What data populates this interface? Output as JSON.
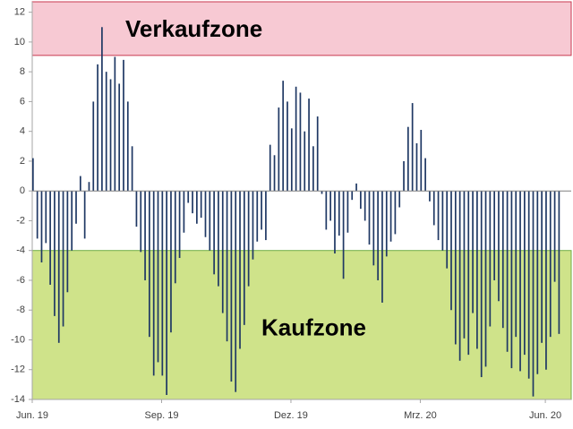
{
  "chart_data": {
    "type": "bar",
    "color": "#1f3864",
    "ylim": [
      -14,
      12.7
    ],
    "yticks": [
      -14,
      -12,
      -10,
      -8,
      -6,
      -4,
      -2,
      0,
      2,
      4,
      6,
      8,
      10,
      12
    ],
    "zones": [
      {
        "label": "Verkaufzone",
        "from": 9.1,
        "to": 12.7,
        "color": "#f7c9d3",
        "border": "#c8394f"
      },
      {
        "label": "Kaufzone",
        "from": -14,
        "to": -4,
        "color": "#cfe38a",
        "border": "#70ad47"
      }
    ],
    "categories": [
      "Jun. 19",
      null,
      null,
      null,
      null,
      null,
      null,
      null,
      null,
      null,
      null,
      null,
      null,
      null,
      null,
      null,
      null,
      null,
      null,
      null,
      null,
      null,
      null,
      null,
      null,
      null,
      null,
      null,
      null,
      null,
      "Sep. 19",
      null,
      null,
      null,
      null,
      null,
      null,
      null,
      null,
      null,
      null,
      null,
      null,
      null,
      null,
      null,
      null,
      null,
      null,
      null,
      null,
      null,
      null,
      null,
      null,
      null,
      null,
      null,
      null,
      null,
      "Dez. 19",
      null,
      null,
      null,
      null,
      null,
      null,
      null,
      null,
      null,
      null,
      null,
      null,
      null,
      null,
      null,
      null,
      null,
      null,
      null,
      null,
      null,
      null,
      null,
      null,
      null,
      null,
      null,
      null,
      null,
      "Mrz. 20",
      null,
      null,
      null,
      null,
      null,
      null,
      null,
      null,
      null,
      null,
      null,
      null,
      null,
      null,
      null,
      null,
      null,
      null,
      null,
      null,
      null,
      null,
      null,
      null,
      null,
      null,
      null,
      null,
      "Jun. 20",
      null,
      null,
      null,
      null,
      null
    ],
    "values": [
      2.2,
      -3.2,
      -4.8,
      -3.5,
      -6.3,
      -8.4,
      -10.2,
      -9.1,
      -6.8,
      -4.0,
      -2.2,
      1.0,
      -3.2,
      0.6,
      6.0,
      8.5,
      11.0,
      8.0,
      7.5,
      9.0,
      7.2,
      8.8,
      6.0,
      3.0,
      -2.4,
      -4.1,
      -6.0,
      -9.8,
      -12.4,
      -11.5,
      -12.4,
      -13.7,
      -9.5,
      -6.2,
      -4.5,
      -2.8,
      -0.8,
      -1.5,
      -2.2,
      -1.8,
      -3.1,
      -4.0,
      -5.6,
      -6.4,
      -8.2,
      -10.1,
      -12.8,
      -13.5,
      -10.6,
      -9.0,
      -6.4,
      -4.6,
      -3.4,
      -2.6,
      -3.3,
      3.1,
      2.4,
      5.6,
      7.4,
      6.0,
      4.2,
      7.0,
      6.6,
      4.0,
      6.2,
      3.0,
      5.0,
      -0.2,
      -2.6,
      -2.0,
      -4.2,
      -3.0,
      -5.9,
      -2.8,
      -0.6,
      0.5,
      -1.2,
      -2.0,
      -3.6,
      -5.0,
      -6.0,
      -7.5,
      -4.4,
      -3.4,
      -2.9,
      -1.1,
      2.0,
      4.3,
      5.9,
      3.2,
      4.1,
      2.2,
      -0.7,
      -2.3,
      -3.3,
      -4.0,
      -5.2,
      -8.0,
      -10.3,
      -11.4,
      -9.9,
      -11.0,
      -8.2,
      -10.6,
      -12.5,
      -11.8,
      -9.1,
      -6.0,
      -7.4,
      -9.2,
      -10.8,
      -11.9,
      -9.8,
      -12.1,
      -11.0,
      -12.6,
      -13.8,
      -12.3,
      -10.2,
      -12.0,
      -9.8,
      -6.1,
      -9.6,
      null,
      null
    ]
  }
}
